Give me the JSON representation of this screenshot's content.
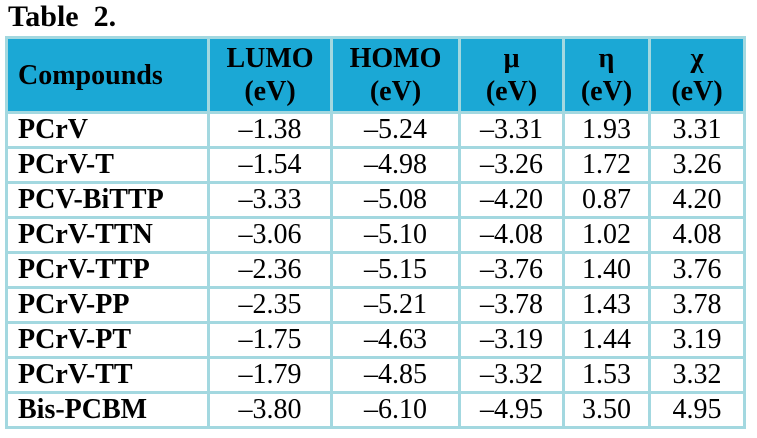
{
  "title": "Table  2.",
  "table": {
    "columns": [
      {
        "label": "Compounds",
        "unit": ""
      },
      {
        "label": "LUMO",
        "unit": "(eV)"
      },
      {
        "label": "HOMO",
        "unit": "(eV)"
      },
      {
        "label": "μ",
        "unit": "(eV)"
      },
      {
        "label": "η",
        "unit": "(eV)"
      },
      {
        "label": "χ",
        "unit": "(eV)"
      }
    ],
    "rows": [
      {
        "compound": "PCrV",
        "values": [
          "–1.38",
          "–5.24",
          "–3.31",
          "1.93",
          "3.31"
        ]
      },
      {
        "compound": "PCrV-T",
        "values": [
          "–1.54",
          "–4.98",
          "–3.26",
          "1.72",
          "3.26"
        ]
      },
      {
        "compound": "PCV-BiTTP",
        "values": [
          "–3.33",
          "–5.08",
          "–4.20",
          "0.87",
          "4.20"
        ]
      },
      {
        "compound": "PCrV-TTN",
        "values": [
          "–3.06",
          "–5.10",
          "–4.08",
          "1.02",
          "4.08"
        ]
      },
      {
        "compound": "PCrV-TTP",
        "values": [
          "–2.36",
          "–5.15",
          "–3.76",
          "1.40",
          "3.76"
        ]
      },
      {
        "compound": "PCrV-PP",
        "values": [
          "–2.35",
          "–5.21",
          "–3.78",
          "1.43",
          "3.78"
        ]
      },
      {
        "compound": "PCrV-PT",
        "values": [
          "–1.75",
          "–4.63",
          "–3.19",
          "1.44",
          "3.19"
        ]
      },
      {
        "compound": "PCrV-TT",
        "values": [
          "–1.79",
          "–4.85",
          "–3.32",
          "1.53",
          "3.32"
        ]
      },
      {
        "compound": "Bis-PCBM",
        "values": [
          "–3.80",
          "–6.10",
          "–4.95",
          "3.50",
          "4.95"
        ]
      }
    ]
  },
  "colors": {
    "header_bg": "#1BA8D5",
    "border": "#A3D8E0",
    "text": "#000000",
    "body_bg": "#FFFFFF"
  },
  "chart_data": {
    "type": "table",
    "title": "Table 2.",
    "columns": [
      "Compounds",
      "LUMO (eV)",
      "HOMO (eV)",
      "μ (eV)",
      "η (eV)",
      "χ (eV)"
    ],
    "rows": [
      [
        "PCrV",
        -1.38,
        -5.24,
        -3.31,
        1.93,
        3.31
      ],
      [
        "PCrV-T",
        -1.54,
        -4.98,
        -3.26,
        1.72,
        3.26
      ],
      [
        "PCV-BiTTP",
        -3.33,
        -5.08,
        -4.2,
        0.87,
        4.2
      ],
      [
        "PCrV-TTN",
        -3.06,
        -5.1,
        -4.08,
        1.02,
        4.08
      ],
      [
        "PCrV-TTP",
        -2.36,
        -5.15,
        -3.76,
        1.4,
        3.76
      ],
      [
        "PCrV-PP",
        -2.35,
        -5.21,
        -3.78,
        1.43,
        3.78
      ],
      [
        "PCrV-PT",
        -1.75,
        -4.63,
        -3.19,
        1.44,
        3.19
      ],
      [
        "PCrV-TT",
        -1.79,
        -4.85,
        -3.32,
        1.53,
        3.32
      ],
      [
        "Bis-PCBM",
        -3.8,
        -6.1,
        -4.95,
        3.5,
        4.95
      ]
    ]
  }
}
